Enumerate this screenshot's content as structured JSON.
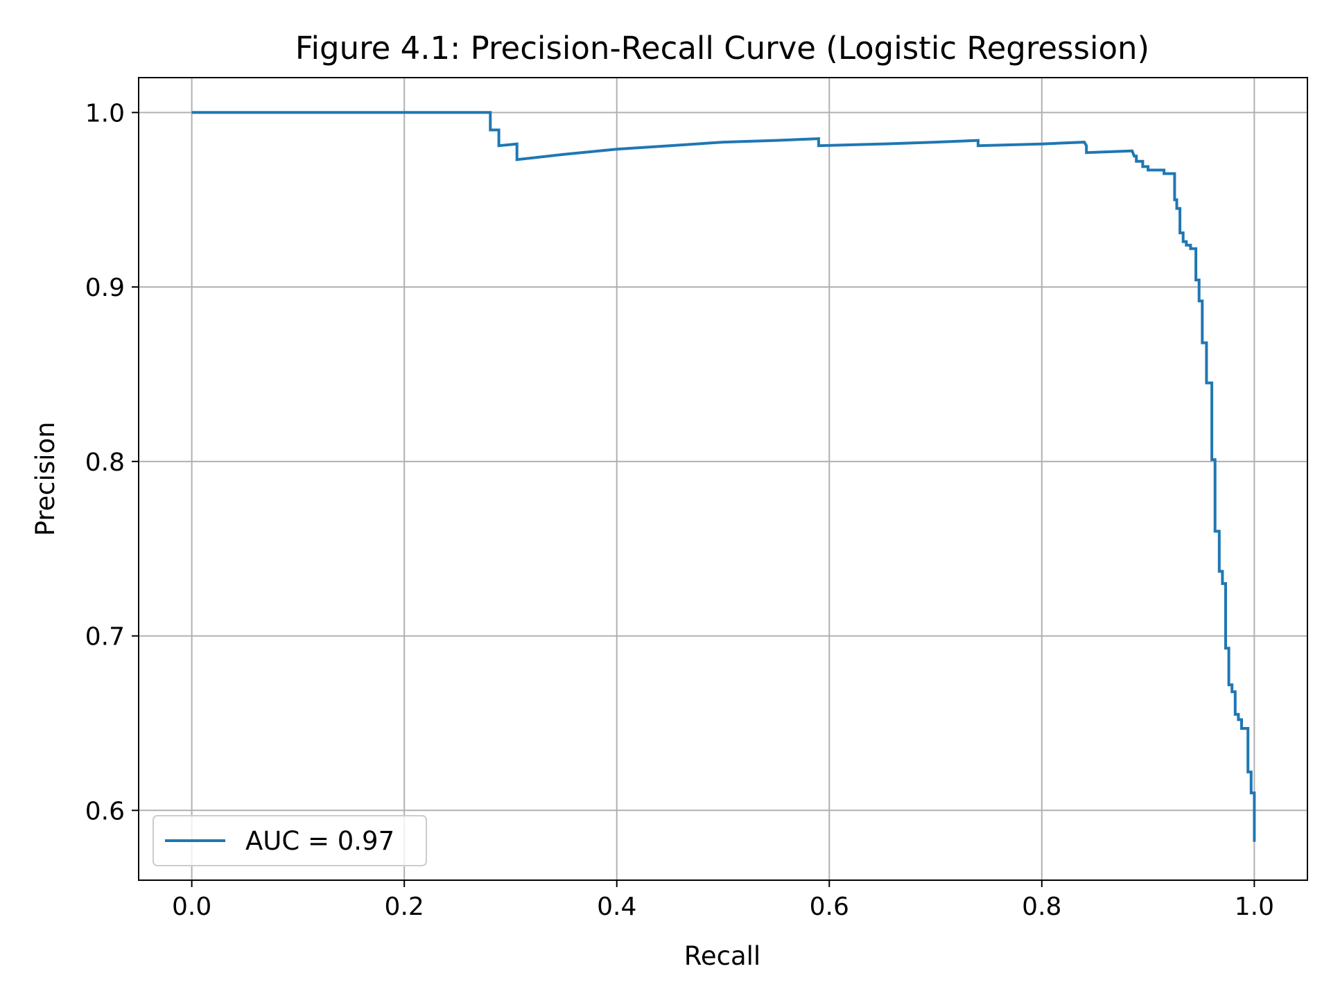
{
  "chart_data": {
    "type": "line",
    "title": "Figure 4.1: Precision-Recall Curve (Logistic Regression)",
    "xlabel": "Recall",
    "ylabel": "Precision",
    "xlim": [
      -0.05,
      1.05
    ],
    "ylim": [
      0.56,
      1.02
    ],
    "grid": true,
    "legend_position": "lower-left",
    "x_ticks": [
      0.0,
      0.2,
      0.4,
      0.6,
      0.8,
      1.0
    ],
    "x_tick_labels": [
      "0.0",
      "0.2",
      "0.4",
      "0.6",
      "0.8",
      "1.0"
    ],
    "y_ticks": [
      0.6,
      0.7,
      0.8,
      0.9,
      1.0
    ],
    "y_tick_labels": [
      "0.6",
      "0.7",
      "0.8",
      "0.9",
      "1.0"
    ],
    "colors": {
      "series": "#1f77b4",
      "grid": "#b0b0b0",
      "axes": "#000000"
    },
    "series": [
      {
        "name": "AUC = 0.97",
        "x": [
          0.0,
          0.281,
          0.281,
          0.289,
          0.289,
          0.306,
          0.306,
          0.35,
          0.4,
          0.45,
          0.5,
          0.55,
          0.59,
          0.59,
          0.65,
          0.7,
          0.74,
          0.74,
          0.8,
          0.84,
          0.842,
          0.842,
          0.885,
          0.887,
          0.889,
          0.889,
          0.895,
          0.895,
          0.9,
          0.9,
          0.905,
          0.905,
          0.915,
          0.915,
          0.925,
          0.925,
          0.927,
          0.927,
          0.93,
          0.93,
          0.933,
          0.933,
          0.936,
          0.936,
          0.94,
          0.94,
          0.945,
          0.945,
          0.948,
          0.948,
          0.951,
          0.951,
          0.955,
          0.955,
          0.96,
          0.96,
          0.963,
          0.963,
          0.967,
          0.967,
          0.97,
          0.97,
          0.973,
          0.973,
          0.976,
          0.976,
          0.979,
          0.979,
          0.982,
          0.982,
          0.985,
          0.985,
          0.988,
          0.988,
          0.994,
          0.994,
          0.997,
          0.997,
          1.0,
          1.0
        ],
        "y": [
          1.0,
          1.0,
          0.99,
          0.99,
          0.981,
          0.982,
          0.973,
          0.976,
          0.979,
          0.981,
          0.983,
          0.984,
          0.985,
          0.981,
          0.982,
          0.983,
          0.984,
          0.981,
          0.982,
          0.983,
          0.981,
          0.977,
          0.978,
          0.975,
          0.975,
          0.972,
          0.972,
          0.969,
          0.969,
          0.967,
          0.967,
          0.967,
          0.967,
          0.965,
          0.965,
          0.95,
          0.95,
          0.945,
          0.945,
          0.931,
          0.931,
          0.926,
          0.926,
          0.924,
          0.924,
          0.922,
          0.922,
          0.904,
          0.904,
          0.892,
          0.892,
          0.868,
          0.868,
          0.845,
          0.845,
          0.801,
          0.801,
          0.76,
          0.76,
          0.737,
          0.737,
          0.73,
          0.73,
          0.693,
          0.693,
          0.672,
          0.672,
          0.668,
          0.668,
          0.655,
          0.655,
          0.652,
          0.652,
          0.647,
          0.647,
          0.622,
          0.622,
          0.61,
          0.61,
          0.582
        ]
      }
    ]
  }
}
